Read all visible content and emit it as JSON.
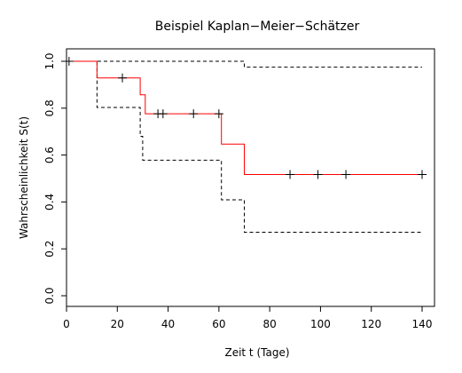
{
  "chart_data": {
    "type": "line",
    "title": "Beispiel Kaplan−Meier−Schätzer",
    "xlabel": "Zeit t (Tage)",
    "ylabel": "Wahrscheinlichkeit S(t)",
    "xlim": [
      0,
      140
    ],
    "ylim": [
      0,
      1
    ],
    "xticks": [
      0,
      20,
      40,
      60,
      80,
      100,
      120,
      140
    ],
    "yticks": [
      0.0,
      0.2,
      0.4,
      0.6,
      0.8,
      1.0
    ],
    "xtick_labels": [
      "0",
      "20",
      "40",
      "60",
      "80",
      "100",
      "120",
      "140"
    ],
    "ytick_labels": [
      "0.0",
      "0.2",
      "0.4",
      "0.6",
      "0.8",
      "1.0"
    ],
    "grid": false,
    "colors": {
      "estimate": "#ff0000",
      "ci": "#000000",
      "censor": "#000000"
    },
    "series": [
      {
        "role": "estimate",
        "step": true,
        "x": [
          0,
          12,
          29,
          31,
          61,
          70,
          140
        ],
        "y": [
          1.0,
          0.929,
          0.857,
          0.776,
          0.647,
          0.517,
          0.517
        ]
      },
      {
        "role": "ci-upper",
        "step": true,
        "x": [
          0,
          70,
          140
        ],
        "y": [
          1.0,
          0.975,
          0.975
        ]
      },
      {
        "role": "ci-lower",
        "step": true,
        "x": [
          0,
          12,
          29,
          30,
          61,
          70,
          140
        ],
        "y": [
          1.0,
          0.803,
          0.68,
          0.578,
          0.409,
          0.271,
          0.271
        ]
      }
    ],
    "censored": [
      {
        "x": 1,
        "y": 1.0
      },
      {
        "x": 22,
        "y": 0.929
      },
      {
        "x": 36,
        "y": 0.776
      },
      {
        "x": 38,
        "y": 0.776
      },
      {
        "x": 50,
        "y": 0.776
      },
      {
        "x": 60,
        "y": 0.776
      },
      {
        "x": 88,
        "y": 0.517
      },
      {
        "x": 99,
        "y": 0.517
      },
      {
        "x": 110,
        "y": 0.517
      },
      {
        "x": 140,
        "y": 0.517
      }
    ]
  }
}
